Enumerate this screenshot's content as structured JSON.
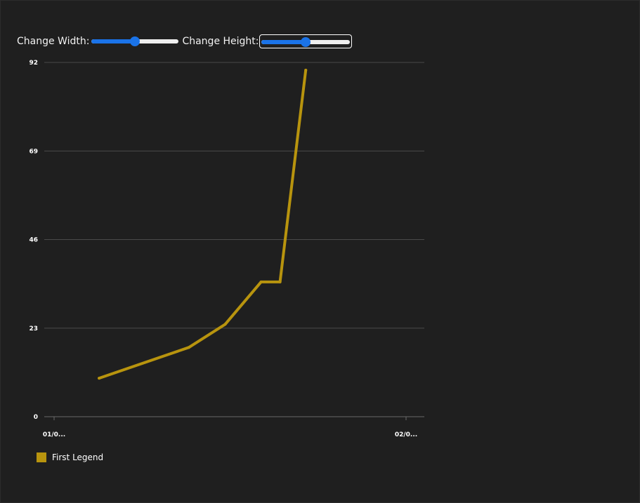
{
  "controls": {
    "width_label": "Change Width:",
    "height_label": "Change Height:",
    "width_value": 0.5,
    "height_value": 0.5
  },
  "colors": {
    "background": "#1f1f1f",
    "series": "#b8940e",
    "gridline": "#4a4a4a",
    "slider_accent": "#1a73e8"
  },
  "chart_data": {
    "type": "line",
    "title": "",
    "xlabel": "",
    "ylabel": "",
    "x_tick_labels": [
      "01/0...",
      "02/0..."
    ],
    "y_ticks": [
      0,
      23,
      46,
      69,
      92
    ],
    "ylim": [
      0,
      92
    ],
    "grid": true,
    "legend_position": "bottom-left",
    "series": [
      {
        "name": "First Legend",
        "color": "#b8940e",
        "points": [
          {
            "x": 0.128,
            "y": 10
          },
          {
            "x": 0.383,
            "y": 18
          },
          {
            "x": 0.486,
            "y": 24
          },
          {
            "x": 0.588,
            "y": 35
          },
          {
            "x": 0.642,
            "y": 35
          },
          {
            "x": 0.715,
            "y": 90
          }
        ]
      }
    ]
  }
}
